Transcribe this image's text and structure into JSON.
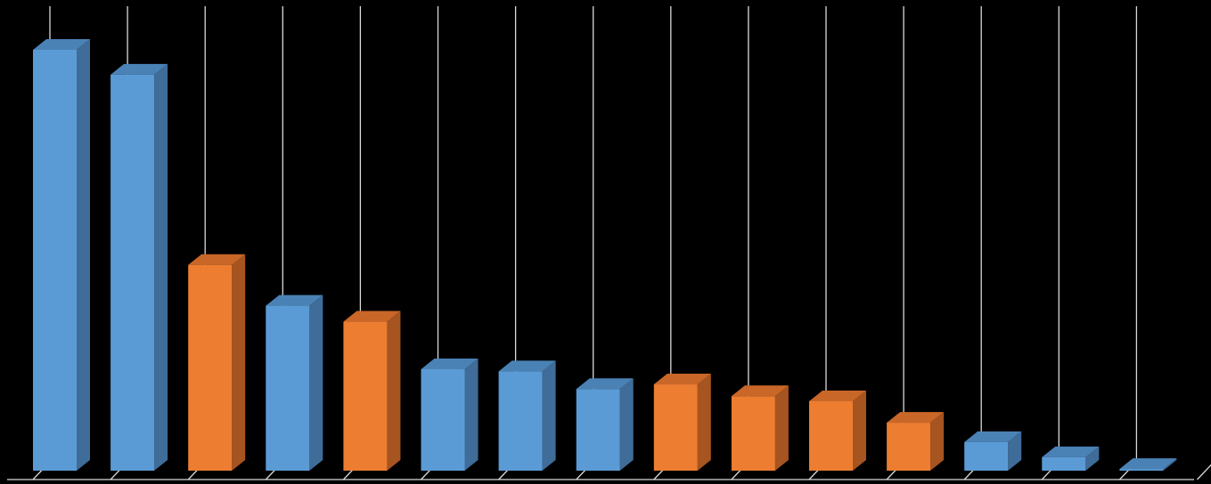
{
  "chart_data": {
    "type": "bar",
    "title": "",
    "xlabel": "",
    "ylabel": "",
    "legend": "none",
    "grid": "vertical",
    "ylim": [
      0,
      100
    ],
    "categories": [
      "",
      "",
      "",
      "",
      "",
      "",
      "",
      "",
      "",
      "",
      "",
      "",
      "",
      "",
      ""
    ],
    "values": [
      100,
      94.1,
      48.9,
      39.2,
      35.4,
      24.1,
      23.6,
      19.4,
      20.5,
      17.7,
      16.5,
      11.4,
      6.8,
      3.2,
      0.4
    ],
    "series_colors": [
      "blue",
      "blue",
      "orange",
      "blue",
      "orange",
      "blue",
      "blue",
      "blue",
      "orange",
      "orange",
      "orange",
      "orange",
      "blue",
      "blue",
      "blue"
    ],
    "colors": {
      "blue": {
        "front": "#5B9BD5",
        "top": "#4A82B6",
        "side": "#3F6C98"
      },
      "orange": {
        "front": "#ED7D31",
        "top": "#C96728",
        "side": "#A65420"
      },
      "grid": "#D9D9D9",
      "background": "#000000"
    }
  }
}
